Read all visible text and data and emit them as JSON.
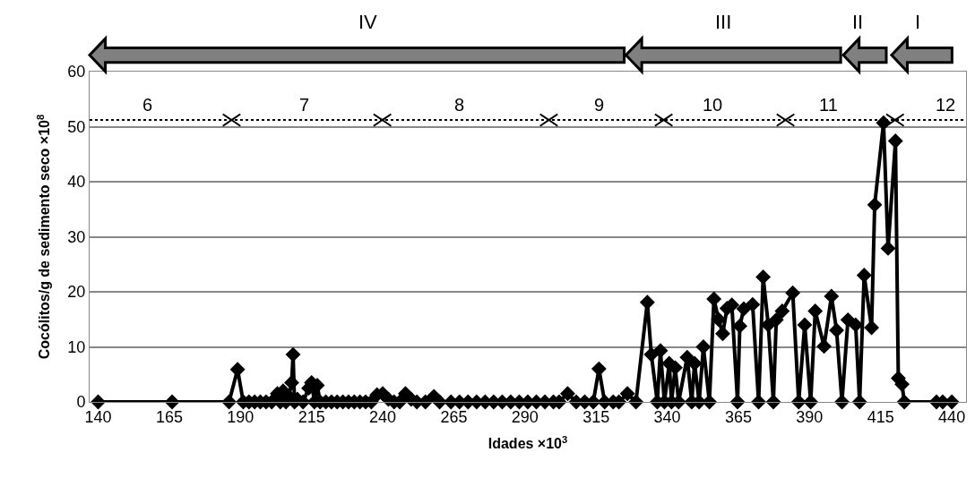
{
  "chart_data": {
    "type": "line",
    "xlabel": "Idades ×10$^{3}$",
    "ylabel": "Cocólitos/g de sedimento seco ×10$^{8}$",
    "xlim": [
      137,
      445
    ],
    "xticks": [
      140,
      165,
      190,
      215,
      240,
      265,
      290,
      315,
      340,
      365,
      390,
      415,
      440
    ],
    "ylim": [
      0,
      60
    ],
    "yticks": [
      0,
      10,
      20,
      30,
      40,
      50,
      60
    ],
    "grid": "y",
    "marker": "diamond",
    "line_style": "solid",
    "series": [
      {
        "color": "#000000",
        "x": [
          140,
          166,
          186,
          189,
          191,
          193,
          195,
          197,
          199,
          201,
          203,
          204,
          205,
          206,
          207,
          208,
          208.5,
          209,
          210,
          212,
          214,
          215,
          216,
          217,
          218,
          220,
          222,
          224,
          226,
          228,
          230,
          232,
          234,
          236,
          238,
          240,
          242,
          244,
          246,
          248,
          250,
          252,
          255,
          258,
          260,
          264,
          267,
          270,
          273,
          276,
          279,
          282,
          285,
          288,
          291,
          294,
          297,
          300,
          302,
          305,
          308,
          311,
          314,
          316,
          318,
          321,
          323,
          326,
          329,
          333,
          334.4,
          336.5,
          337.6,
          339,
          340.7,
          341.5,
          342.8,
          344,
          347,
          348.6,
          349.6,
          351.2,
          352.7,
          354.8,
          356.4,
          358,
          359.5,
          361,
          362.7,
          364.7,
          365.5,
          366.9,
          370,
          372.1,
          373.7,
          375.5,
          377.3,
          378.3,
          380.4,
          384.1,
          386.2,
          388.3,
          390.4,
          392,
          395.1,
          397.7,
          399.5,
          401.4,
          403.5,
          406.2,
          407.6,
          409.2,
          411.8,
          412.9,
          416,
          417.6,
          420.2,
          421.2,
          422.5,
          423.3,
          434.6,
          436.8,
          440
        ],
        "values": [
          0,
          0,
          0,
          5.9,
          0,
          0,
          0,
          0,
          0,
          0,
          1.5,
          0,
          2,
          0,
          1,
          3.5,
          8.6,
          0,
          0.5,
          0,
          2.5,
          3.5,
          0,
          3,
          0,
          0,
          0,
          0,
          0,
          0,
          0,
          0,
          0,
          0,
          1.3,
          1.5,
          0.5,
          0,
          0,
          1.5,
          0.5,
          0,
          0,
          1,
          0,
          0,
          0,
          0,
          0,
          0,
          0,
          0,
          0,
          0,
          0,
          0,
          0,
          0,
          0,
          1.5,
          0,
          0,
          0,
          6,
          0,
          0,
          0,
          1.5,
          0,
          18.1,
          8.6,
          0,
          9.3,
          0,
          7,
          0,
          6.2,
          0,
          8.1,
          0,
          7,
          0,
          10,
          0,
          18.7,
          15,
          12.4,
          17,
          17.6,
          0,
          13.8,
          16.9,
          17.7,
          0,
          22.7,
          14,
          0,
          14.9,
          16.5,
          19.8,
          0,
          14,
          0,
          16.5,
          10.1,
          19.2,
          13,
          0,
          14.9,
          14,
          0,
          23,
          13.5,
          35.8,
          50.7,
          27.9,
          47.4,
          4.3,
          3.2,
          0,
          0,
          0,
          0
        ]
      }
    ],
    "ref_lines": [
      {
        "axis": "y",
        "value": 51.2,
        "line_style": "dotted",
        "color": "#000000"
      }
    ],
    "annotations": [
      "IV",
      "III",
      "II",
      "I",
      "6",
      "7",
      "8",
      "9",
      "10",
      "11",
      "12"
    ]
  }
}
